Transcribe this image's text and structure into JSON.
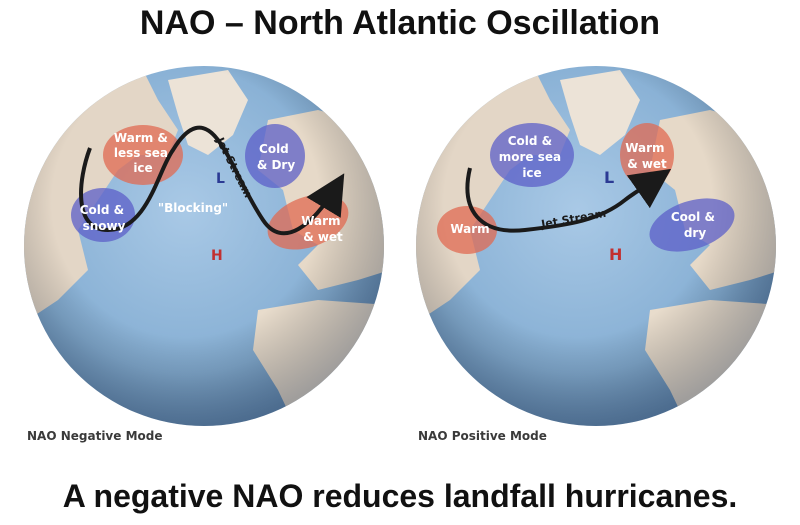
{
  "title": "NAO – North Atlantic Oscillation",
  "footer": "A negative NAO reduces landfall hurricanes.",
  "colors": {
    "ocean": "#8fb6d8",
    "land": "#e8dccd",
    "warm_region": "#e06a52",
    "cold_region": "#5c5fc8",
    "high_pressure": "#c23030",
    "low_pressure": "#2b3a94",
    "jet_stream": "#1a1a1a"
  },
  "left_globe": {
    "caption": "NAO Negative Mode",
    "warm_ice": [
      "Warm &",
      "less sea",
      "ice"
    ],
    "cold_snowy": [
      "Cold &",
      "snowy"
    ],
    "cold_dry": [
      "Cold",
      "& Dry"
    ],
    "warm_wet": [
      "Warm",
      "& wet"
    ],
    "blocking": "\"Blocking\"",
    "jet_stream": "Jet Stream",
    "low": "L",
    "high": "H"
  },
  "right_globe": {
    "caption": "NAO Positive Mode",
    "cold_ice": [
      "Cold &",
      "more sea",
      "ice"
    ],
    "warm": "Warm",
    "warm_wet": [
      "Warm",
      "& wet"
    ],
    "cool_dry": [
      "Cool &",
      "dry"
    ],
    "jet_stream": "Jet Stream",
    "low": "L",
    "high": "H"
  }
}
